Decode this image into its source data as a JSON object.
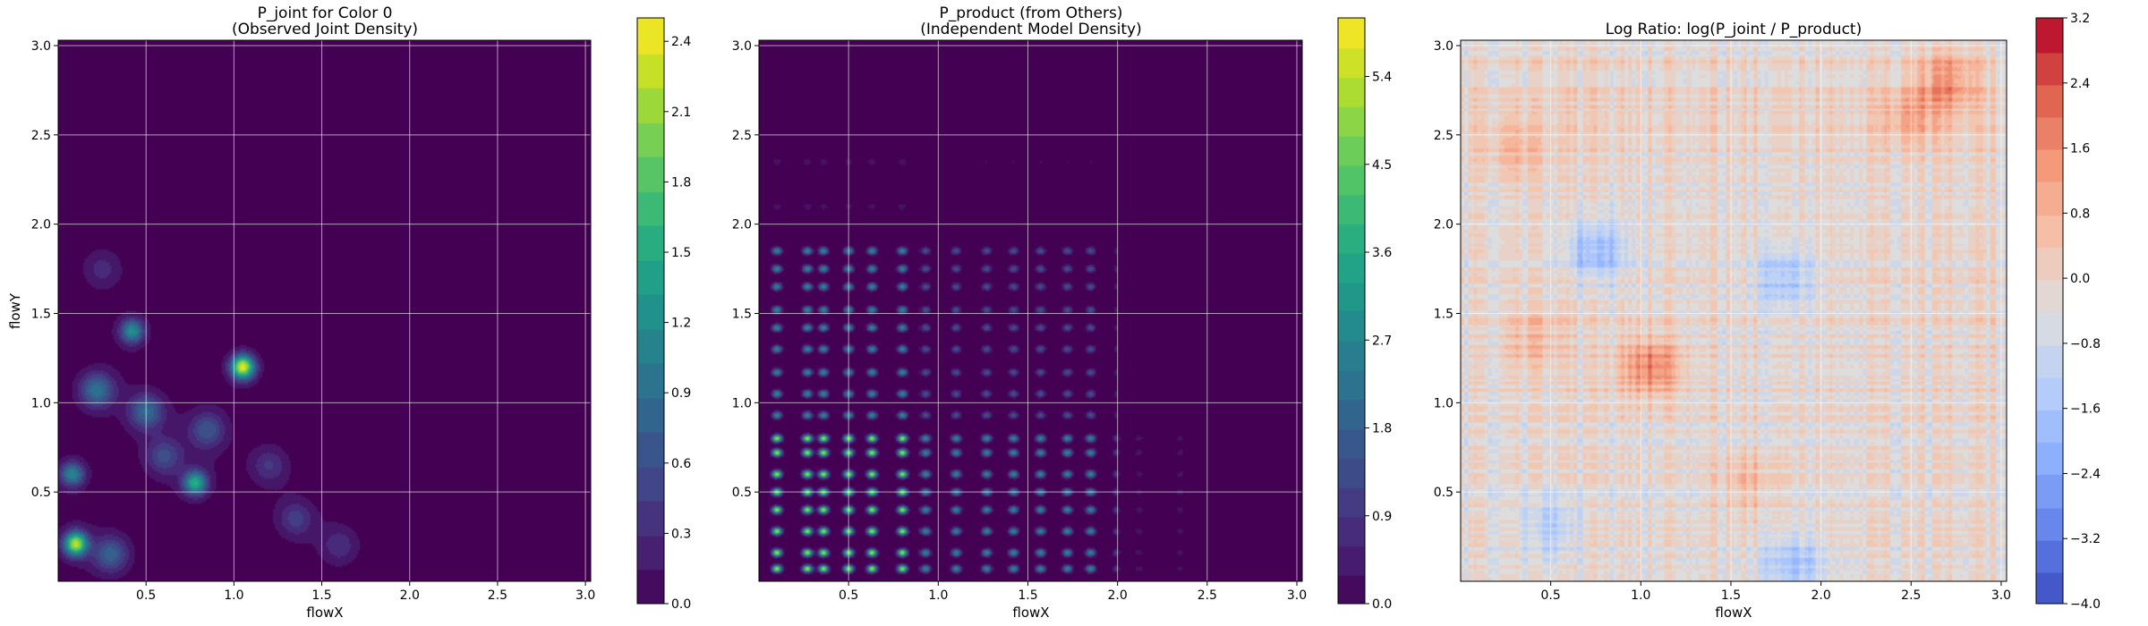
{
  "chart_data": [
    {
      "type": "heatmap",
      "panel": "P_joint",
      "title_line1": "P_joint for Color 0",
      "title_line2": "(Observed Joint Density)",
      "xlabel": "flowX",
      "ylabel": "flowY",
      "xlim": [
        0.0,
        3.03
      ],
      "ylim": [
        0.0,
        3.03
      ],
      "xticks": [
        0.5,
        1.0,
        1.5,
        2.0,
        2.5,
        3.0
      ],
      "yticks": [
        0.5,
        1.0,
        1.5,
        2.0,
        2.5,
        3.0
      ],
      "xtick_labels": [
        "0.5",
        "1.0",
        "1.5",
        "2.0",
        "2.5",
        "3.0"
      ],
      "ytick_labels": [
        "0.5",
        "1.0",
        "1.5",
        "2.0",
        "2.5",
        "3.0"
      ],
      "grid": true,
      "colormap": "viridis",
      "colorbar": {
        "range": [
          0.0,
          2.5
        ],
        "ticks": [
          0.0,
          0.3,
          0.6,
          0.9,
          1.2,
          1.5,
          1.8,
          2.1,
          2.4
        ],
        "tick_labels": [
          "0.0",
          "0.3",
          "0.6",
          "0.9",
          "1.2",
          "1.5",
          "1.8",
          "2.1",
          "2.4"
        ]
      },
      "peaks": [
        {
          "x": 1.05,
          "y": 1.2,
          "value": 2.4
        },
        {
          "x": 0.1,
          "y": 0.21,
          "value": 2.2
        },
        {
          "x": 0.78,
          "y": 0.55,
          "value": 1.5
        },
        {
          "x": 0.42,
          "y": 1.4,
          "value": 1.2
        },
        {
          "x": 0.08,
          "y": 0.6,
          "value": 1.1
        },
        {
          "x": 0.22,
          "y": 1.07,
          "value": 0.9
        },
        {
          "x": 0.5,
          "y": 0.95,
          "value": 0.8
        },
        {
          "x": 0.85,
          "y": 0.85,
          "value": 0.6
        },
        {
          "x": 0.3,
          "y": 0.15,
          "value": 0.7
        },
        {
          "x": 0.6,
          "y": 0.7,
          "value": 0.5
        },
        {
          "x": 1.35,
          "y": 0.35,
          "value": 0.4
        },
        {
          "x": 1.2,
          "y": 0.65,
          "value": 0.35
        },
        {
          "x": 1.6,
          "y": 0.2,
          "value": 0.3
        },
        {
          "x": 0.25,
          "y": 1.75,
          "value": 0.25
        }
      ]
    },
    {
      "type": "heatmap",
      "panel": "P_product",
      "title_line1": "P_product (from Others)",
      "title_line2": "(Independent Model Density)",
      "xlabel": "flowX",
      "ylabel": "",
      "xlim": [
        0.0,
        3.03
      ],
      "ylim": [
        0.0,
        3.03
      ],
      "xticks": [
        0.5,
        1.0,
        1.5,
        2.0,
        2.5,
        3.0
      ],
      "yticks": [
        0.5,
        1.0,
        1.5,
        2.0,
        2.5,
        3.0
      ],
      "xtick_labels": [
        "0.5",
        "1.0",
        "1.5",
        "2.0",
        "2.5",
        "3.0"
      ],
      "ytick_labels": [
        "0.5",
        "1.0",
        "1.5",
        "2.0",
        "2.5",
        "3.0"
      ],
      "grid": true,
      "colormap": "viridis",
      "colorbar": {
        "range": [
          0.0,
          6.0
        ],
        "ticks": [
          0.0,
          0.9,
          1.8,
          2.7,
          3.6,
          4.5,
          5.4
        ],
        "tick_labels": [
          "0.0",
          "0.9",
          "1.8",
          "2.7",
          "3.6",
          "4.5",
          "5.4"
        ]
      },
      "x_marginal_peaks": [
        0.1,
        0.27,
        0.36,
        0.5,
        0.63,
        0.8,
        0.93,
        1.1,
        1.27,
        1.42,
        1.57,
        1.72,
        1.85,
        2.0,
        2.12,
        2.35
      ],
      "y_marginal_peaks": [
        0.07,
        0.16,
        0.28,
        0.4,
        0.5,
        0.6,
        0.72,
        0.8,
        0.93,
        1.05,
        1.17,
        1.3,
        1.42,
        1.52,
        1.65,
        1.75,
        1.85,
        2.1,
        2.35
      ],
      "max_value": 5.6
    },
    {
      "type": "heatmap",
      "panel": "Log Ratio",
      "title": "Log Ratio: log(P_joint / P_product)",
      "xlabel": "flowX",
      "ylabel": "",
      "xlim": [
        0.0,
        3.03
      ],
      "ylim": [
        0.0,
        3.03
      ],
      "xticks": [
        0.5,
        1.0,
        1.5,
        2.0,
        2.5,
        3.0
      ],
      "yticks": [
        0.5,
        1.0,
        1.5,
        2.0,
        2.5,
        3.0
      ],
      "xtick_labels": [
        "0.5",
        "1.0",
        "1.5",
        "2.0",
        "2.5",
        "3.0"
      ],
      "ytick_labels": [
        "0.5",
        "1.0",
        "1.5",
        "2.0",
        "2.5",
        "3.0"
      ],
      "grid": true,
      "colormap": "coolwarm",
      "colorbar": {
        "range": [
          -4.0,
          3.2
        ],
        "ticks": [
          -4.0,
          -3.2,
          -2.4,
          -1.6,
          -0.8,
          0.0,
          0.8,
          1.6,
          2.4,
          3.2
        ],
        "tick_labels": [
          "−4.0",
          "−3.2",
          "−2.4",
          "−1.6",
          "−0.8",
          "0.0",
          "0.8",
          "1.6",
          "2.4",
          "3.2"
        ]
      },
      "features": [
        {
          "x": 1.05,
          "y": 1.2,
          "value": 2.0
        },
        {
          "x": 2.7,
          "y": 2.8,
          "value": 1.5
        },
        {
          "x": 2.5,
          "y": 2.6,
          "value": 1.0
        },
        {
          "x": 0.3,
          "y": 2.4,
          "value": 0.8
        },
        {
          "x": 0.75,
          "y": 1.85,
          "value": -1.8
        },
        {
          "x": 1.8,
          "y": 1.7,
          "value": -1.4
        },
        {
          "x": 0.5,
          "y": 0.3,
          "value": -1.2
        },
        {
          "x": 1.85,
          "y": 0.1,
          "value": -1.4
        },
        {
          "x": 0.4,
          "y": 1.35,
          "value": 0.9
        },
        {
          "x": 1.6,
          "y": 0.55,
          "value": 0.9
        }
      ]
    }
  ]
}
